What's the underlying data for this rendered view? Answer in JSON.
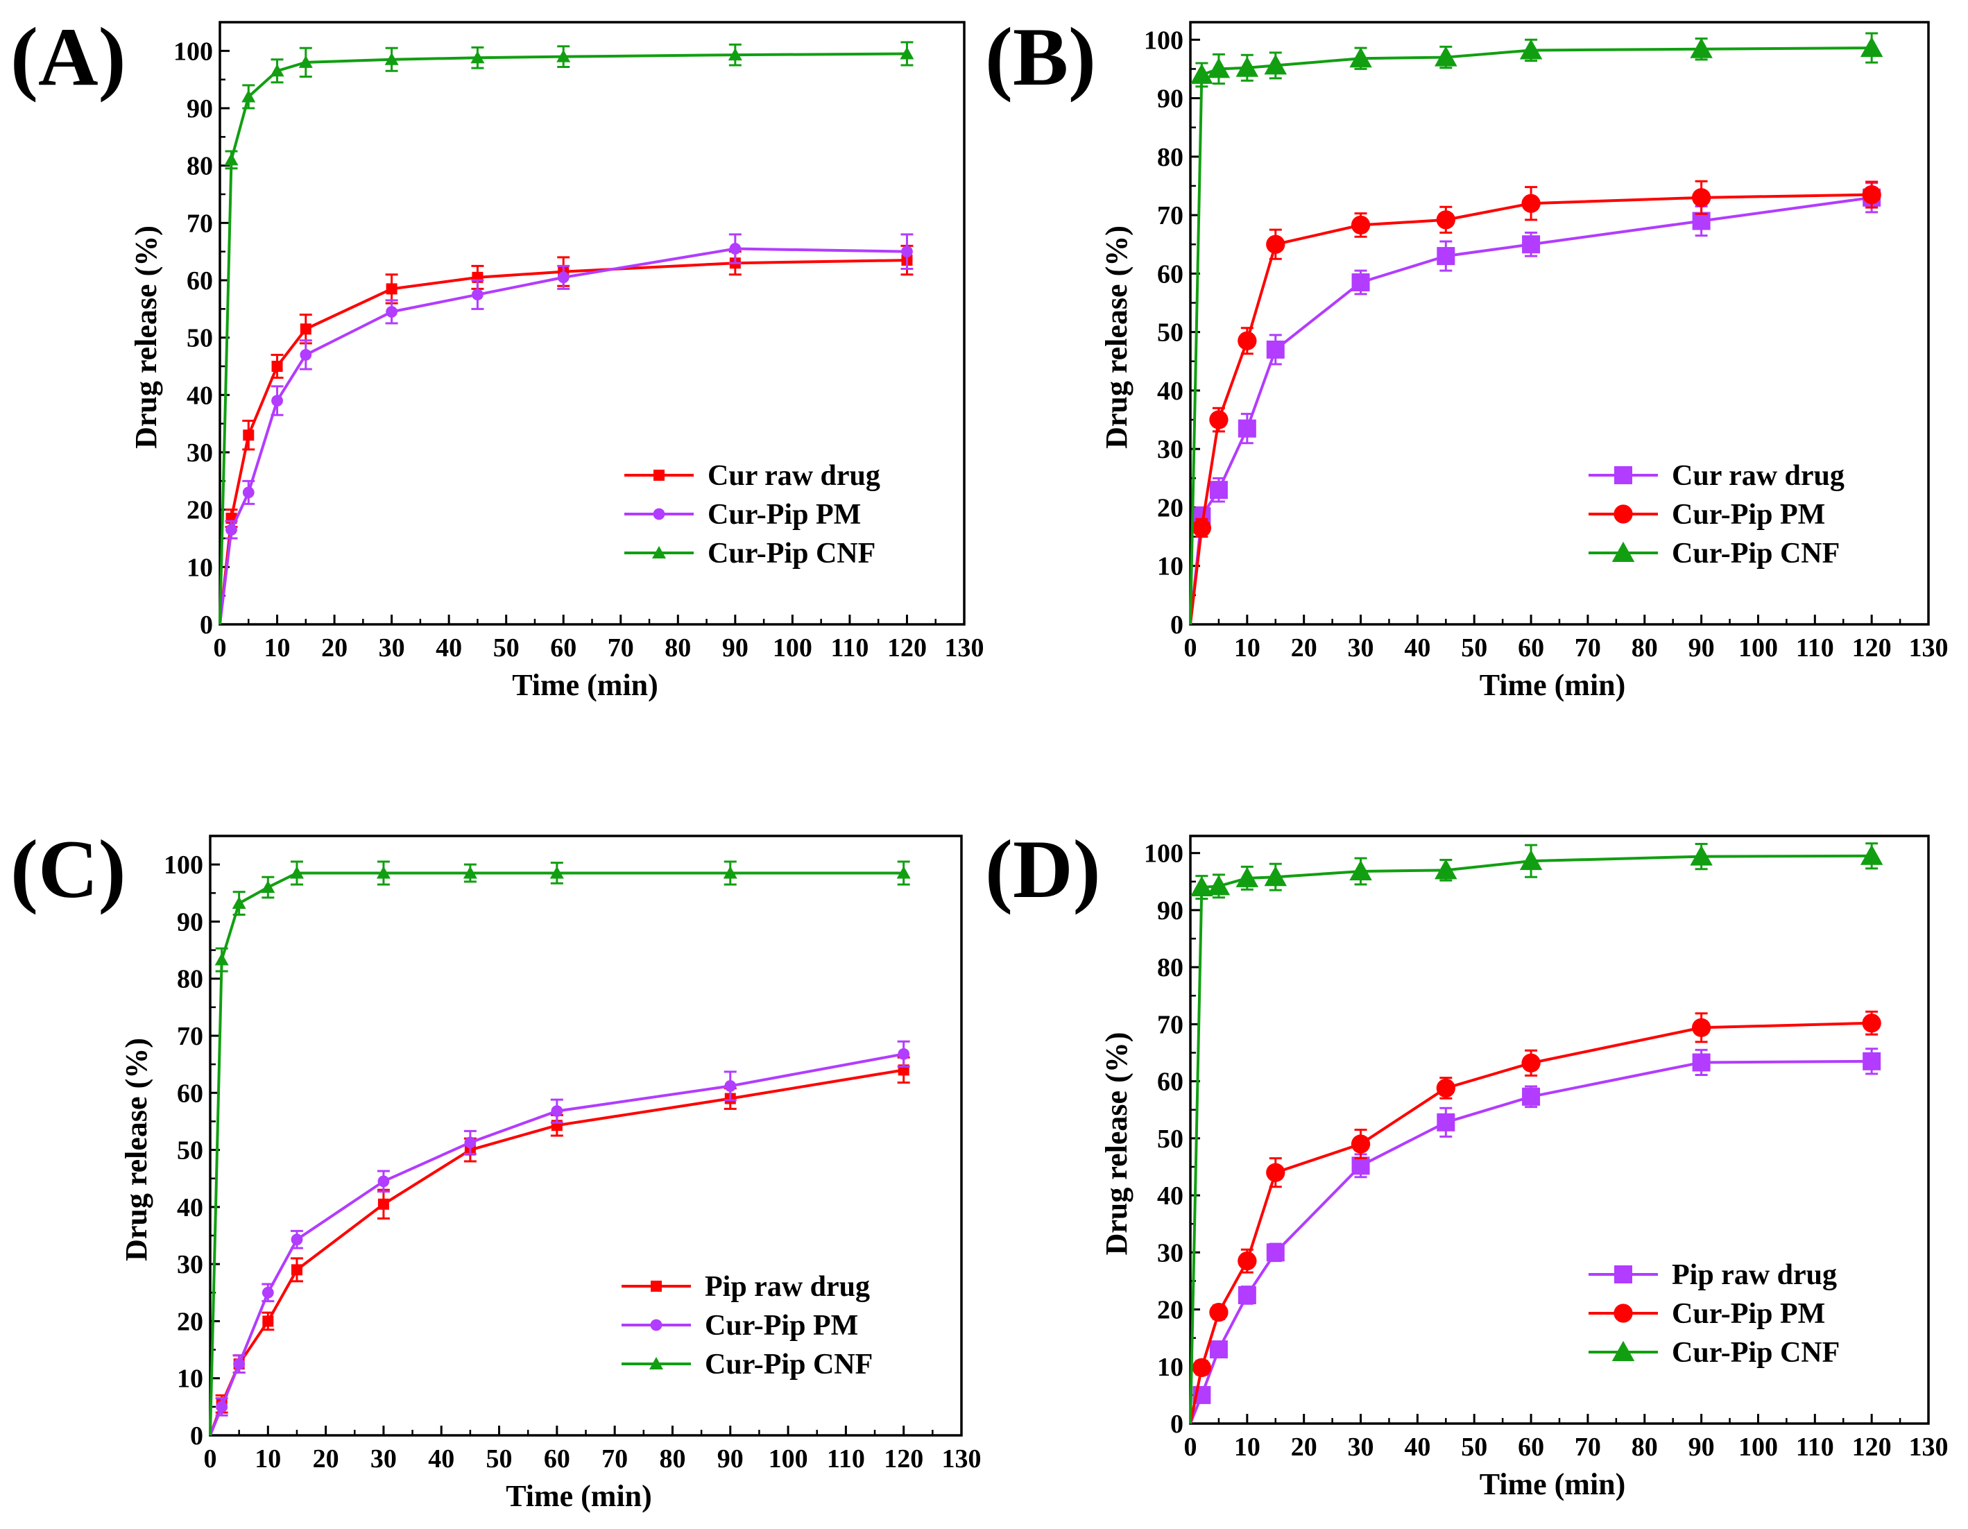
{
  "colors": {
    "red": "#ff0000",
    "purple": "#b23cff",
    "green": "#119f11",
    "axis": "#000000"
  },
  "chart_data": [
    {
      "type": "line",
      "panel_label": "(A)",
      "xlabel": "Time (min)",
      "ylabel": "Drug release (%)",
      "xlim": [
        0,
        130
      ],
      "ylim": [
        0,
        105
      ],
      "xticks": [
        0,
        10,
        20,
        30,
        40,
        50,
        60,
        70,
        80,
        90,
        100,
        110,
        120,
        130
      ],
      "yticks": [
        0,
        10,
        20,
        30,
        40,
        50,
        60,
        70,
        80,
        90,
        100
      ],
      "marker_style": "small",
      "legend_position": "lower-right",
      "series": [
        {
          "name": "Cur raw drug",
          "color": "red",
          "marker": "square",
          "x": [
            0,
            2,
            5,
            10,
            15,
            30,
            45,
            60,
            90,
            120
          ],
          "values": [
            0,
            18.5,
            33,
            45,
            51.5,
            58.5,
            60.5,
            61.5,
            63,
            63.5
          ],
          "err": [
            0,
            1.5,
            2.5,
            2,
            2.5,
            2.5,
            2,
            2.5,
            2,
            2.5
          ]
        },
        {
          "name": "Cur-Pip PM",
          "color": "purple",
          "marker": "circle",
          "x": [
            0,
            2,
            5,
            10,
            15,
            30,
            45,
            60,
            90,
            120
          ],
          "values": [
            0,
            16.5,
            23,
            39,
            47,
            54.5,
            57.5,
            60.5,
            65.5,
            65
          ],
          "err": [
            0,
            1.5,
            2,
            2.5,
            2.5,
            2,
            2.5,
            2,
            2.5,
            3
          ]
        },
        {
          "name": "Cur-Pip CNF",
          "color": "green",
          "marker": "triangle",
          "x": [
            0,
            2,
            5,
            10,
            15,
            30,
            45,
            60,
            90,
            120
          ],
          "values": [
            0,
            81,
            92,
            96.5,
            98,
            98.5,
            98.8,
            99,
            99.3,
            99.5
          ],
          "err": [
            0,
            1.5,
            2,
            2,
            2.5,
            2,
            1.8,
            1.8,
            1.8,
            2
          ]
        }
      ]
    },
    {
      "type": "line",
      "panel_label": "(B)",
      "xlabel": "Time (min)",
      "ylabel": "Drug release (%)",
      "xlim": [
        0,
        130
      ],
      "ylim": [
        0,
        103
      ],
      "xticks": [
        0,
        10,
        20,
        30,
        40,
        50,
        60,
        70,
        80,
        90,
        100,
        110,
        120,
        130
      ],
      "yticks": [
        0,
        10,
        20,
        30,
        40,
        50,
        60,
        70,
        80,
        90,
        100
      ],
      "marker_style": "large",
      "legend_position": "lower-right",
      "series": [
        {
          "name": "Cur raw drug",
          "color": "purple",
          "marker": "square",
          "x": [
            0,
            2,
            5,
            10,
            15,
            30,
            45,
            60,
            90,
            120
          ],
          "values": [
            0,
            18.5,
            23,
            33.5,
            47,
            58.5,
            63,
            65,
            69,
            73
          ],
          "err": [
            0,
            1.5,
            2,
            2.5,
            2.5,
            2,
            2.5,
            2,
            2.5,
            2.5
          ]
        },
        {
          "name": "Cur-Pip PM",
          "color": "red",
          "marker": "circle",
          "x": [
            0,
            2,
            5,
            10,
            15,
            30,
            45,
            60,
            90,
            120
          ],
          "values": [
            0,
            16.5,
            35,
            48.5,
            65,
            68.3,
            69.2,
            72,
            73,
            73.5
          ],
          "err": [
            0,
            1.5,
            2,
            2.2,
            2.5,
            2,
            2.2,
            2.8,
            2.8,
            2.2
          ]
        },
        {
          "name": "Cur-Pip CNF",
          "color": "green",
          "marker": "triangle",
          "x": [
            0,
            2,
            5,
            10,
            15,
            30,
            45,
            60,
            90,
            120
          ],
          "values": [
            0,
            94,
            95,
            95.2,
            95.6,
            96.8,
            97,
            98.2,
            98.4,
            98.6
          ],
          "err": [
            0,
            2,
            2.5,
            2.2,
            2.2,
            1.8,
            1.8,
            1.8,
            1.8,
            2.5
          ]
        }
      ]
    },
    {
      "type": "line",
      "panel_label": "(C)",
      "xlabel": "Time (min)",
      "ylabel": "Drug release (%)",
      "xlim": [
        0,
        130
      ],
      "ylim": [
        0,
        105
      ],
      "xticks": [
        0,
        10,
        20,
        30,
        40,
        50,
        60,
        70,
        80,
        90,
        100,
        110,
        120,
        130
      ],
      "yticks": [
        0,
        10,
        20,
        30,
        40,
        50,
        60,
        70,
        80,
        90,
        100
      ],
      "marker_style": "small",
      "legend_position": "lower-right",
      "series": [
        {
          "name": "Pip raw drug",
          "color": "red",
          "marker": "square",
          "x": [
            0,
            2,
            5,
            10,
            15,
            30,
            45,
            60,
            90,
            120
          ],
          "values": [
            0,
            5.5,
            12.5,
            20,
            29,
            40.5,
            50,
            54.3,
            59,
            64
          ],
          "err": [
            0,
            1.5,
            1.5,
            1.5,
            2,
            2.5,
            2,
            1.8,
            1.8,
            2.2
          ]
        },
        {
          "name": "Cur-Pip PM",
          "color": "purple",
          "marker": "circle",
          "x": [
            0,
            2,
            5,
            10,
            15,
            30,
            45,
            60,
            90,
            120
          ],
          "values": [
            0,
            5,
            12.5,
            25,
            34.3,
            44.5,
            51.3,
            56.8,
            61.2,
            66.8
          ],
          "err": [
            0,
            1.5,
            1.5,
            1.5,
            1.5,
            1.8,
            2,
            2,
            2.5,
            2.2
          ]
        },
        {
          "name": "Cur-Pip CNF",
          "color": "green",
          "marker": "triangle",
          "x": [
            0,
            2,
            5,
            10,
            15,
            30,
            45,
            60,
            90,
            120
          ],
          "values": [
            0,
            83.3,
            93.2,
            96,
            98.5,
            98.5,
            98.5,
            98.5,
            98.5,
            98.5
          ],
          "err": [
            0,
            2,
            2,
            1.8,
            2,
            2,
            1.5,
            1.8,
            2,
            2
          ]
        }
      ]
    },
    {
      "type": "line",
      "panel_label": "(D)",
      "xlabel": "Time (min)",
      "ylabel": "Drug release (%)",
      "xlim": [
        0,
        130
      ],
      "ylim": [
        0,
        103
      ],
      "xticks": [
        0,
        10,
        20,
        30,
        40,
        50,
        60,
        70,
        80,
        90,
        100,
        110,
        120,
        130
      ],
      "yticks": [
        0,
        10,
        20,
        30,
        40,
        50,
        60,
        70,
        80,
        90,
        100
      ],
      "marker_style": "large",
      "legend_position": "lower-right",
      "series": [
        {
          "name": "Pip raw drug",
          "color": "purple",
          "marker": "square",
          "x": [
            0,
            2,
            5,
            10,
            15,
            30,
            45,
            60,
            90,
            120
          ],
          "values": [
            0,
            5,
            13,
            22.5,
            30,
            45.2,
            52.8,
            57.3,
            63.3,
            63.5
          ],
          "err": [
            0,
            1.2,
            1.2,
            1.5,
            1.5,
            2,
            2.5,
            1.8,
            2.2,
            2.2
          ]
        },
        {
          "name": "Cur-Pip PM",
          "color": "red",
          "marker": "circle",
          "x": [
            0,
            2,
            5,
            10,
            15,
            30,
            45,
            60,
            90,
            120
          ],
          "values": [
            0,
            9.8,
            19.5,
            28.5,
            44,
            49,
            58.8,
            63.2,
            69.4,
            70.2
          ],
          "err": [
            0,
            1.2,
            1.2,
            2,
            2.5,
            2.5,
            1.8,
            2.2,
            2.5,
            2
          ]
        },
        {
          "name": "Cur-Pip CNF",
          "color": "green",
          "marker": "triangle",
          "x": [
            0,
            2,
            5,
            10,
            15,
            30,
            45,
            60,
            90,
            120
          ],
          "values": [
            0,
            94,
            94.2,
            95.6,
            95.8,
            96.8,
            97,
            98.6,
            99.4,
            99.5
          ],
          "err": [
            0,
            2,
            2,
            2,
            2.3,
            2.3,
            1.8,
            2.8,
            2.2,
            2.2
          ]
        }
      ]
    }
  ]
}
